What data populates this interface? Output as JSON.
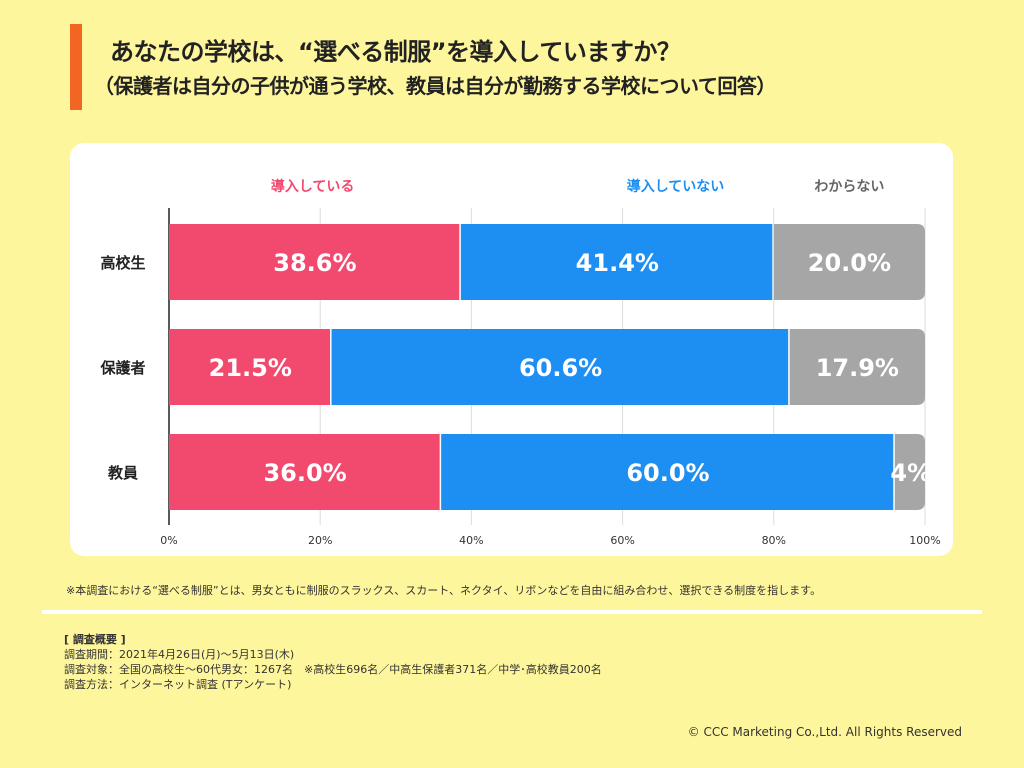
{
  "header": {
    "title": "あなたの学校は、“選べる制服”を導入していますか？",
    "subtitle": "（保護者は自分の子供が通う学校、教員は自分が勤務する学校について回答）"
  },
  "chart_data": {
    "type": "bar",
    "orientation": "horizontal",
    "stacked": true,
    "categories": [
      "高校生",
      "保護者",
      "教員"
    ],
    "series": [
      {
        "name": "導入している",
        "values": [
          38.6,
          21.5,
          36.0
        ],
        "labels": [
          "38.6%",
          "21.5%",
          "36.0%"
        ],
        "color": "#f14a6e"
      },
      {
        "name": "導入していない",
        "values": [
          41.4,
          60.6,
          60.0
        ],
        "labels": [
          "41.4%",
          "60.6%",
          "60.0%"
        ],
        "color": "#1d8ef2"
      },
      {
        "name": "わからない",
        "values": [
          20.0,
          17.9,
          4.0
        ],
        "labels": [
          "20.0%",
          "17.9%",
          "4%"
        ],
        "color": "#a6a6a6"
      }
    ],
    "xlim": [
      0,
      100
    ],
    "xticks": [
      "0%",
      "20%",
      "40%",
      "60%",
      "80%",
      "100%"
    ],
    "grid": true,
    "legend": "top"
  },
  "footer": {
    "note": "※本調査における“選べる制服”とは、男女ともに制服のスラックス、スカート、ネクタイ、リボンなどを自由に組み合わせ、選択できる制度を指します。",
    "survey_heading": "[ 調査概要 ]",
    "survey_lines": [
      "調査期間：2021年4月26日(月)～5月13日(木)",
      "調査対象：全国の高校生～60代男女：1267名　※高校生696名／中高生保護者371名／中学･高校教員200名",
      "調査方法：インターネット調査 (Tアンケート)"
    ],
    "copyright": "© CCC Marketing Co.,Ltd. All Rights Reserved"
  }
}
